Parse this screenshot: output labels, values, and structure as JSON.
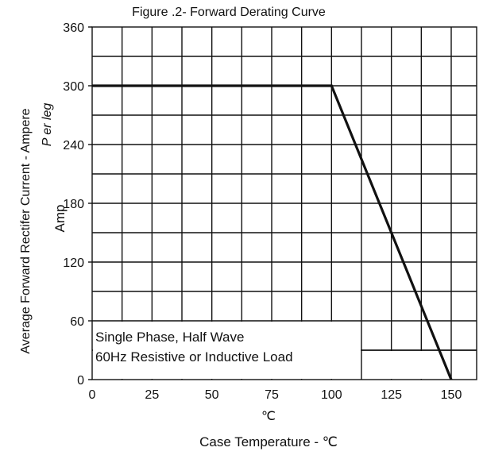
{
  "chart_data": {
    "type": "line",
    "title": "Figure .2- Forward Derating Curve",
    "xlabel": "Case Temperature -  ℃",
    "xunit_label": "℃",
    "ylabel_lines": [
      "Average  Forward  Rectifer  Current - Ampere",
      "P er leg",
      "Amp"
    ],
    "xlim": [
      0,
      150
    ],
    "ylim": [
      0,
      360
    ],
    "x_ticks": [
      0,
      25,
      50,
      75,
      100,
      125,
      150
    ],
    "y_ticks": [
      0,
      60,
      120,
      180,
      240,
      300,
      360
    ],
    "grid": true,
    "legend": "none",
    "series": [
      {
        "x": [
          0,
          100,
          150
        ],
        "y": [
          300,
          300,
          0
        ]
      }
    ],
    "annotation": {
      "lines": [
        "Single Phase, Half Wave",
        "60Hz Resistive or Inductive Load"
      ]
    },
    "colors": {
      "line": "#111111",
      "grid": "#111111",
      "background": "#ffffff"
    }
  }
}
